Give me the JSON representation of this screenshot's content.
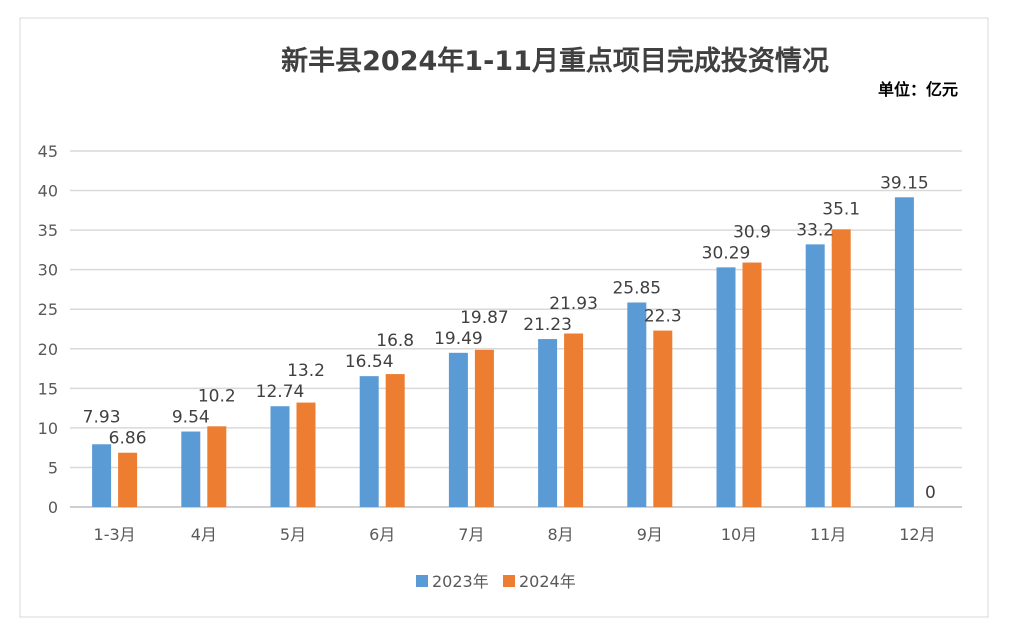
{
  "chart_data": {
    "type": "bar",
    "title": "新丰县2024年1-11月重点项目完成投资情况",
    "unit_label": "单位：亿元",
    "categories": [
      "1-3月",
      "4月",
      "5月",
      "6月",
      "7月",
      "8月",
      "9月",
      "10月",
      "11月",
      "12月"
    ],
    "series": [
      {
        "name": "2023年",
        "color": "#5B9BD5",
        "values": [
          7.93,
          9.54,
          12.74,
          16.54,
          19.49,
          21.23,
          25.85,
          30.29,
          33.2,
          39.15
        ]
      },
      {
        "name": "2024年",
        "color": "#ED7D31",
        "values": [
          6.86,
          10.2,
          13.2,
          16.8,
          19.87,
          21.93,
          22.3,
          30.9,
          35.1,
          0
        ]
      }
    ],
    "ylim": [
      0,
      45
    ],
    "yticks": [
      0,
      5,
      10,
      15,
      20,
      25,
      30,
      35,
      40,
      45
    ],
    "grid": true,
    "legend": "bottom",
    "xlabel": "",
    "ylabel": ""
  }
}
